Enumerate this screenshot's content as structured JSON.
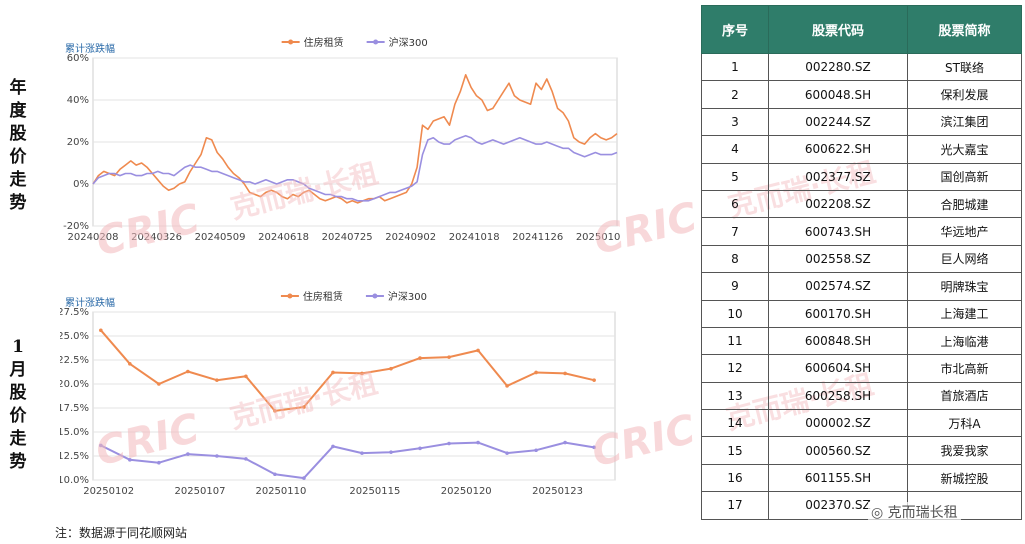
{
  "labels": {
    "top": "年度股价走势",
    "bottom": "1月股价走势"
  },
  "footnote": "注：数据源于同花顺网站",
  "watermark": {
    "brand": "CRIC",
    "text": "克而瑞·长租"
  },
  "brand_badge": "克而瑞长租",
  "colors": {
    "rent": "#ef8a4f",
    "hs300": "#9a8fe0",
    "header": "#2f7d6a"
  },
  "chart_data": [
    {
      "type": "line",
      "ylabel": "累计涨跌幅",
      "ylim": [
        -20,
        60
      ],
      "yticks": [
        -20,
        0,
        20,
        40,
        60
      ],
      "ytick_labels": [
        "-20%",
        "0%",
        "20%",
        "40%",
        "60%"
      ],
      "xtick_labels": [
        "20240208",
        "20240326",
        "20240509",
        "20240618",
        "20240725",
        "20240902",
        "20241018",
        "20241126",
        "20250103"
      ],
      "grid": true,
      "legend": "top-center",
      "series": [
        {
          "name": "住房租赁",
          "values": [
            0,
            4,
            6,
            5,
            4,
            7,
            9,
            11,
            9,
            10,
            8,
            5,
            2,
            -1,
            -3,
            -2,
            0,
            1,
            6,
            10,
            14,
            22,
            21,
            15,
            12,
            8,
            5,
            3,
            0,
            -4,
            -5,
            -6,
            -4,
            -3,
            -4,
            -6,
            -7,
            -5,
            -6,
            -4,
            -3,
            -5,
            -7,
            -8,
            -7,
            -6,
            -7,
            -9,
            -8,
            -9,
            -8,
            -7,
            -7,
            -6,
            -8,
            -7,
            -6,
            -5,
            -4,
            0,
            8,
            28,
            26,
            30,
            31,
            32,
            28,
            38,
            44,
            52,
            46,
            42,
            40,
            35,
            36,
            40,
            44,
            48,
            42,
            40,
            39,
            38,
            48,
            45,
            50,
            44,
            36,
            34,
            30,
            22,
            20,
            19,
            22,
            24,
            22,
            21,
            22,
            24
          ]
        },
        {
          "name": "沪深300",
          "values": [
            0,
            3,
            4,
            5,
            5,
            4,
            5,
            5,
            4,
            4,
            5,
            5,
            6,
            5,
            5,
            4,
            6,
            8,
            9,
            8,
            8,
            7,
            6,
            6,
            5,
            4,
            3,
            2,
            1,
            1,
            0,
            1,
            2,
            1,
            0,
            1,
            2,
            2,
            1,
            0,
            -2,
            -3,
            -4,
            -5,
            -5,
            -6,
            -6,
            -7,
            -7,
            -8,
            -8,
            -8,
            -7,
            -6,
            -5,
            -4,
            -4,
            -3,
            -2,
            -1,
            1,
            14,
            21,
            22,
            20,
            19,
            19,
            21,
            22,
            23,
            22,
            20,
            19,
            20,
            21,
            20,
            19,
            20,
            21,
            22,
            21,
            20,
            19,
            19,
            20,
            19,
            18,
            17,
            17,
            15,
            14,
            13,
            14,
            15,
            14,
            14,
            14,
            15
          ]
        }
      ]
    },
    {
      "type": "line",
      "ylabel": "累计涨跌幅",
      "ylim": [
        10,
        27.5
      ],
      "yticks": [
        10,
        12.5,
        15,
        17.5,
        20,
        22.5,
        25,
        27.5
      ],
      "ytick_labels": [
        "10.0%",
        "12.5%",
        "15.0%",
        "17.5%",
        "20.0%",
        "22.5%",
        "25.0%",
        "27.5%"
      ],
      "xtick_labels": [
        "20250102",
        "20250107",
        "20250110",
        "20250115",
        "20250120",
        "20250123"
      ],
      "grid": true,
      "legend": "top-center",
      "series": [
        {
          "name": "住房租赁",
          "values": [
            25.6,
            22.1,
            20.0,
            21.3,
            20.4,
            20.8,
            17.2,
            17.6,
            21.2,
            21.1,
            21.6,
            22.7,
            22.8,
            23.5,
            19.8,
            21.2,
            21.1,
            20.4
          ]
        },
        {
          "name": "沪深300",
          "values": [
            13.6,
            12.1,
            11.8,
            12.7,
            12.5,
            12.2,
            10.6,
            10.2,
            13.5,
            12.8,
            12.9,
            13.3,
            13.8,
            13.9,
            12.8,
            13.1,
            13.9,
            13.4
          ]
        }
      ]
    }
  ],
  "table": {
    "headers": [
      "序号",
      "股票代码",
      "股票简称"
    ],
    "rows": [
      [
        "1",
        "002280.SZ",
        "ST联络"
      ],
      [
        "2",
        "600048.SH",
        "保利发展"
      ],
      [
        "3",
        "002244.SZ",
        "滨江集团"
      ],
      [
        "4",
        "600622.SH",
        "光大嘉宝"
      ],
      [
        "5",
        "002377.SZ",
        "国创高新"
      ],
      [
        "6",
        "002208.SZ",
        "合肥城建"
      ],
      [
        "7",
        "600743.SH",
        "华远地产"
      ],
      [
        "8",
        "002558.SZ",
        "巨人网络"
      ],
      [
        "9",
        "002574.SZ",
        "明牌珠宝"
      ],
      [
        "10",
        "600170.SH",
        "上海建工"
      ],
      [
        "11",
        "600848.SH",
        "上海临港"
      ],
      [
        "12",
        "600604.SH",
        "市北高新"
      ],
      [
        "13",
        "600258.SH",
        "首旅酒店"
      ],
      [
        "14",
        "000002.SZ",
        "万科A"
      ],
      [
        "15",
        "000560.SZ",
        "我爱我家"
      ],
      [
        "16",
        "601155.SH",
        "新城控股"
      ],
      [
        "17",
        "002370.SZ",
        ""
      ]
    ]
  }
}
